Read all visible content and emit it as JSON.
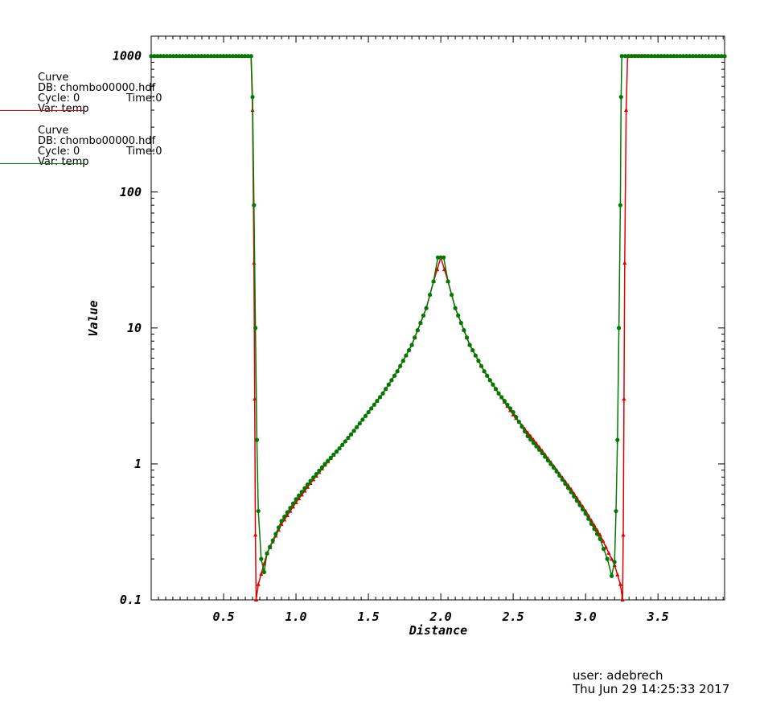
{
  "legend": [
    {
      "title": "Curve",
      "db": "DB: chombo00000.hdf",
      "cycle": "Cycle: 0",
      "time": "Time:0",
      "var": "Var: temp",
      "color": "#e00000"
    },
    {
      "title": "Curve",
      "db": "DB: chombo00000.hdf",
      "cycle": "Cycle: 0",
      "time": "Time:0",
      "var": "Var: temp",
      "color": "#007a00"
    }
  ],
  "footer": {
    "user": "user: adebrech",
    "date": "Thu Jun 29 14:25:33 2017"
  },
  "chart_data": {
    "type": "line",
    "xlabel": "Distance",
    "ylabel": "Value",
    "xlim": [
      0,
      3.96
    ],
    "ylim": [
      0.1,
      1400
    ],
    "yscale": "log",
    "grid": false,
    "x_ticks": [
      "0.5",
      "1.0",
      "1.5",
      "2.0",
      "2.5",
      "3.0",
      "3.5"
    ],
    "y_ticks": [
      "0.1",
      "1",
      "10",
      "100",
      "1000"
    ],
    "series": [
      {
        "color": "#e00000",
        "marker": "triangle",
        "points": [
          [
            0.0,
            1000
          ],
          [
            0.5,
            1000
          ],
          [
            0.69,
            1000
          ],
          [
            0.7,
            400
          ],
          [
            0.71,
            30
          ],
          [
            0.715,
            3
          ],
          [
            0.72,
            0.3
          ],
          [
            0.725,
            0.1
          ],
          [
            0.74,
            0.13
          ],
          [
            0.8,
            0.22
          ],
          [
            0.9,
            0.36
          ],
          [
            1.0,
            0.52
          ],
          [
            1.1,
            0.72
          ],
          [
            1.2,
            0.98
          ],
          [
            1.3,
            1.3
          ],
          [
            1.4,
            1.75
          ],
          [
            1.5,
            2.4
          ],
          [
            1.6,
            3.3
          ],
          [
            1.7,
            4.8
          ],
          [
            1.8,
            7.5
          ],
          [
            1.9,
            14
          ],
          [
            1.95,
            22
          ],
          [
            2.0,
            33
          ],
          [
            2.05,
            22
          ],
          [
            2.1,
            14
          ],
          [
            2.2,
            7.5
          ],
          [
            2.3,
            4.8
          ],
          [
            2.4,
            3.3
          ],
          [
            2.5,
            2.3
          ],
          [
            2.6,
            1.7
          ],
          [
            2.7,
            1.25
          ],
          [
            2.8,
            0.9
          ],
          [
            2.9,
            0.65
          ],
          [
            3.0,
            0.45
          ],
          [
            3.1,
            0.3
          ],
          [
            3.2,
            0.18
          ],
          [
            3.24,
            0.13
          ],
          [
            3.255,
            0.1
          ],
          [
            3.26,
            0.3
          ],
          [
            3.265,
            3
          ],
          [
            3.27,
            30
          ],
          [
            3.28,
            400
          ],
          [
            3.29,
            1000
          ],
          [
            3.5,
            1000
          ],
          [
            3.96,
            1000
          ]
        ]
      },
      {
        "color": "#007a00",
        "marker": "circle",
        "points": [
          [
            0.0,
            1000
          ],
          [
            0.5,
            1000
          ],
          [
            0.69,
            1000
          ],
          [
            0.7,
            500
          ],
          [
            0.71,
            80
          ],
          [
            0.72,
            10
          ],
          [
            0.73,
            1.5
          ],
          [
            0.74,
            0.45
          ],
          [
            0.76,
            0.2
          ],
          [
            0.78,
            0.16
          ],
          [
            0.8,
            0.22
          ],
          [
            0.9,
            0.38
          ],
          [
            1.0,
            0.55
          ],
          [
            1.1,
            0.75
          ],
          [
            1.2,
            1.0
          ],
          [
            1.3,
            1.3
          ],
          [
            1.4,
            1.75
          ],
          [
            1.5,
            2.4
          ],
          [
            1.6,
            3.3
          ],
          [
            1.7,
            4.8
          ],
          [
            1.8,
            7.5
          ],
          [
            1.9,
            14
          ],
          [
            1.95,
            22
          ],
          [
            1.98,
            33
          ],
          [
            2.02,
            33
          ],
          [
            2.05,
            22
          ],
          [
            2.1,
            14
          ],
          [
            2.2,
            7.5
          ],
          [
            2.3,
            4.8
          ],
          [
            2.4,
            3.3
          ],
          [
            2.5,
            2.4
          ],
          [
            2.6,
            1.6
          ],
          [
            2.7,
            1.2
          ],
          [
            2.8,
            0.88
          ],
          [
            2.9,
            0.62
          ],
          [
            3.0,
            0.43
          ],
          [
            3.1,
            0.28
          ],
          [
            3.15,
            0.2
          ],
          [
            3.18,
            0.15
          ],
          [
            3.2,
            0.19
          ],
          [
            3.21,
            0.45
          ],
          [
            3.22,
            1.5
          ],
          [
            3.23,
            10
          ],
          [
            3.24,
            80
          ],
          [
            3.245,
            500
          ],
          [
            3.25,
            1000
          ],
          [
            3.5,
            1000
          ],
          [
            3.96,
            1000
          ]
        ]
      }
    ]
  }
}
